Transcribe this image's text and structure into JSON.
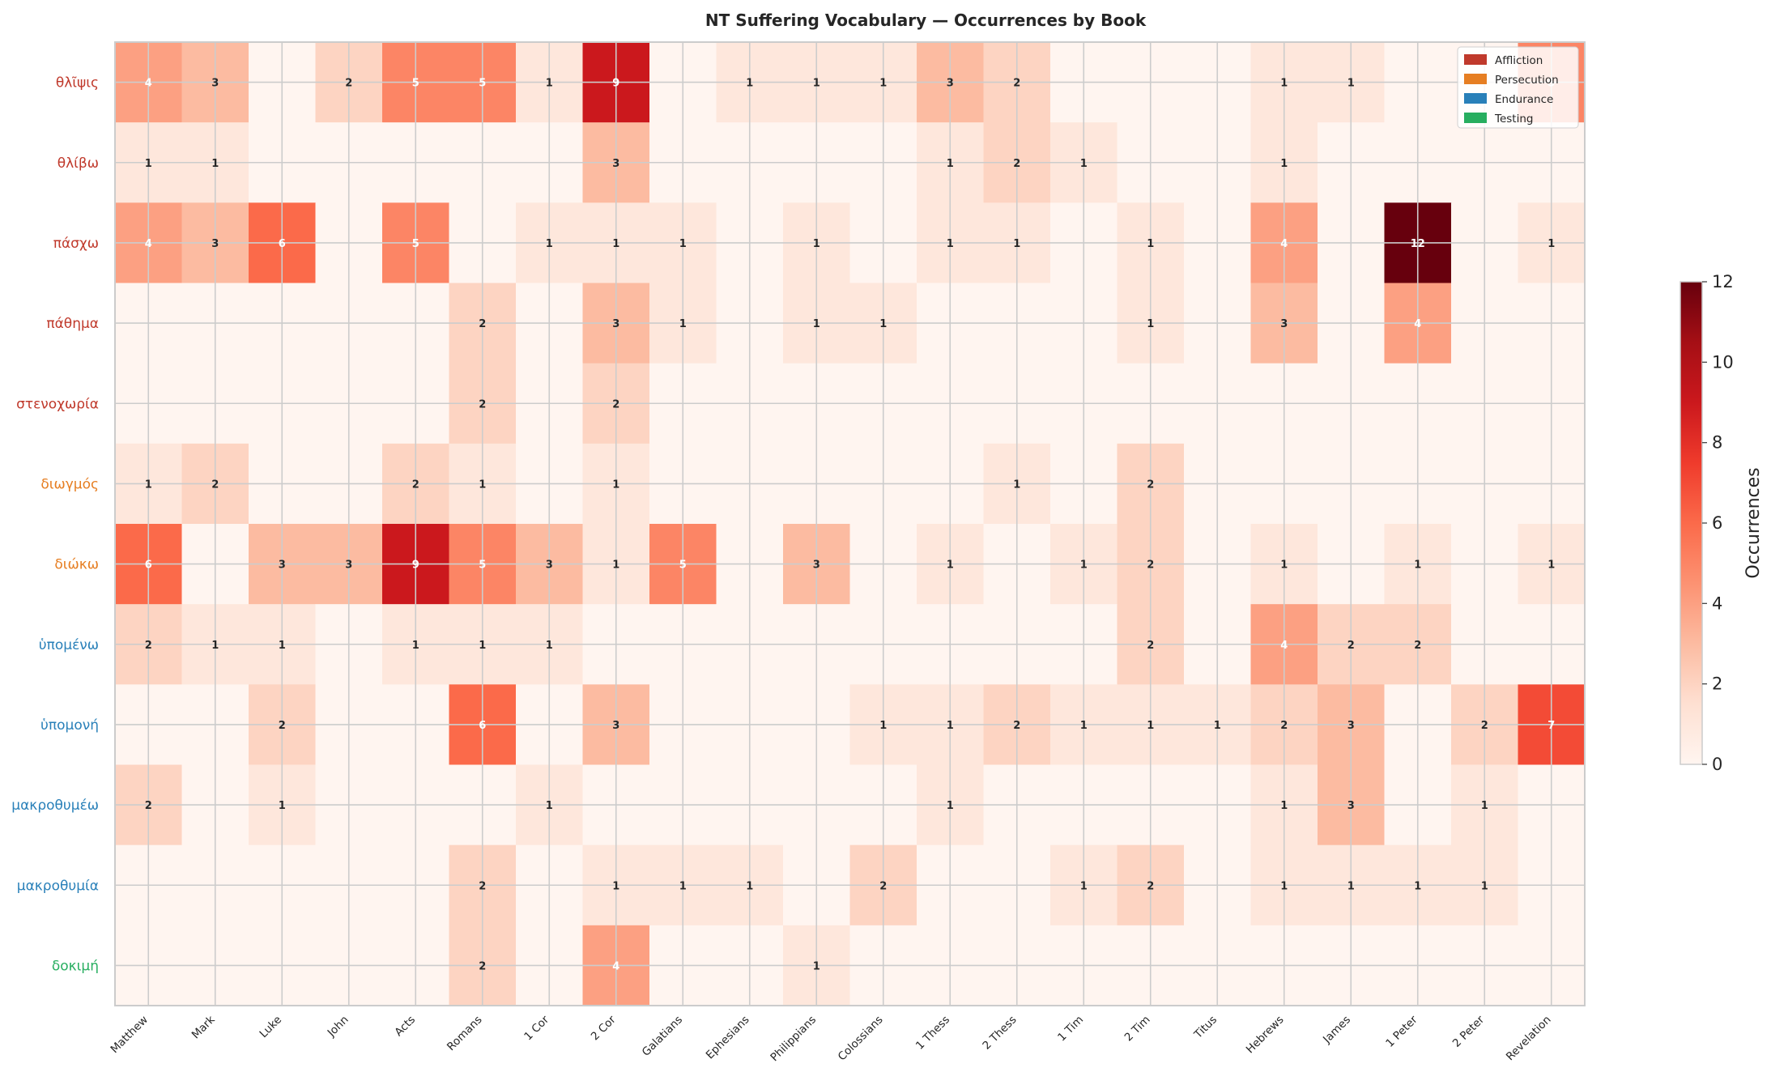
{
  "chart_data": {
    "type": "heatmap",
    "title": "NT Suffering Vocabulary — Occurrences by Book",
    "x_categories": [
      "Matthew",
      "Mark",
      "Luke",
      "John",
      "Acts",
      "Romans",
      "1 Cor",
      "2 Cor",
      "Galatians",
      "Ephesians",
      "Philippians",
      "Colossians",
      "1 Thess",
      "2 Thess",
      "1 Tim",
      "2 Tim",
      "Titus",
      "Hebrews",
      "James",
      "1 Peter",
      "2 Peter",
      "Revelation"
    ],
    "y_categories": [
      {
        "word": "θλῖψις",
        "category": "Affliction"
      },
      {
        "word": "θλίβω",
        "category": "Affliction"
      },
      {
        "word": "πάσχω",
        "category": "Affliction"
      },
      {
        "word": "πάθημα",
        "category": "Affliction"
      },
      {
        "word": "στενοχωρία",
        "category": "Affliction"
      },
      {
        "word": "διωγμός",
        "category": "Persecution"
      },
      {
        "word": "διώκω",
        "category": "Persecution"
      },
      {
        "word": "ὑπομένω",
        "category": "Endurance"
      },
      {
        "word": "ὑπομονή",
        "category": "Endurance"
      },
      {
        "word": "μακροθυμέω",
        "category": "Endurance"
      },
      {
        "word": "μακροθυμία",
        "category": "Endurance"
      },
      {
        "word": "δοκιμή",
        "category": "Testing"
      }
    ],
    "values": [
      [
        4,
        3,
        0,
        2,
        5,
        5,
        1,
        9,
        0,
        1,
        1,
        1,
        3,
        2,
        0,
        0,
        0,
        1,
        1,
        0,
        0,
        5
      ],
      [
        1,
        1,
        0,
        0,
        0,
        0,
        0,
        3,
        0,
        0,
        0,
        0,
        1,
        2,
        1,
        0,
        0,
        1,
        0,
        0,
        0,
        0
      ],
      [
        4,
        3,
        6,
        0,
        5,
        0,
        1,
        1,
        1,
        0,
        1,
        0,
        1,
        1,
        0,
        1,
        0,
        4,
        0,
        12,
        0,
        1
      ],
      [
        0,
        0,
        0,
        0,
        0,
        2,
        0,
        3,
        1,
        0,
        1,
        1,
        0,
        0,
        0,
        1,
        0,
        3,
        0,
        4,
        0,
        0
      ],
      [
        0,
        0,
        0,
        0,
        0,
        2,
        0,
        2,
        0,
        0,
        0,
        0,
        0,
        0,
        0,
        0,
        0,
        0,
        0,
        0,
        0,
        0
      ],
      [
        1,
        2,
        0,
        0,
        2,
        1,
        0,
        1,
        0,
        0,
        0,
        0,
        0,
        1,
        0,
        2,
        0,
        0,
        0,
        0,
        0,
        0
      ],
      [
        6,
        0,
        3,
        3,
        9,
        5,
        3,
        1,
        5,
        0,
        3,
        0,
        1,
        0,
        1,
        2,
        0,
        1,
        0,
        1,
        0,
        1
      ],
      [
        2,
        1,
        1,
        0,
        1,
        1,
        1,
        0,
        0,
        0,
        0,
        0,
        0,
        0,
        0,
        2,
        0,
        4,
        2,
        2,
        0,
        0
      ],
      [
        0,
        0,
        2,
        0,
        0,
        6,
        0,
        3,
        0,
        0,
        0,
        1,
        1,
        2,
        1,
        1,
        1,
        2,
        3,
        0,
        2,
        7
      ],
      [
        2,
        0,
        1,
        0,
        0,
        0,
        1,
        0,
        0,
        0,
        0,
        0,
        1,
        0,
        0,
        0,
        0,
        1,
        3,
        0,
        1,
        0
      ],
      [
        0,
        0,
        0,
        0,
        0,
        2,
        0,
        1,
        1,
        1,
        0,
        2,
        0,
        0,
        1,
        2,
        0,
        1,
        1,
        1,
        1,
        0
      ],
      [
        0,
        0,
        0,
        0,
        0,
        2,
        0,
        4,
        0,
        0,
        1,
        0,
        0,
        0,
        0,
        0,
        0,
        0,
        0,
        0,
        0,
        0
      ]
    ],
    "legend": [
      {
        "name": "Affliction",
        "color": "#c0392b"
      },
      {
        "name": "Persecution",
        "color": "#e67e22"
      },
      {
        "name": "Endurance",
        "color": "#2980b9"
      },
      {
        "name": "Testing",
        "color": "#27ae60"
      }
    ],
    "legend_placement": "top-right",
    "colorbar": {
      "label": "Occurrences",
      "min": 0,
      "max": 12,
      "ticks": [
        0,
        2,
        4,
        6,
        8,
        10,
        12
      ],
      "colormap": "Reds"
    },
    "grid": true
  }
}
